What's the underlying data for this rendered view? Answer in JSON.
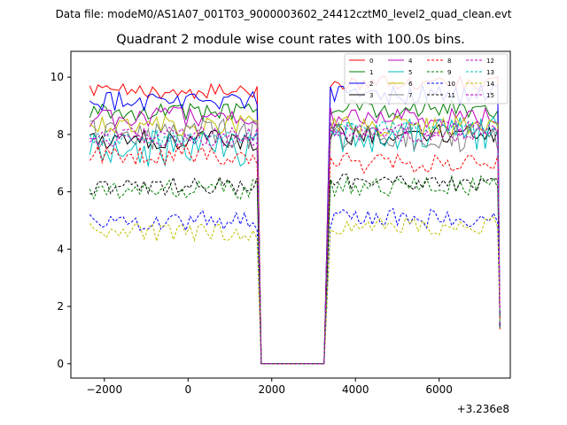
{
  "suptitle": "Data file: modeM0/AS1A07_001T03_9000003602_24412cztM0_level2_quad_clean.evt",
  "chart_data": {
    "type": "line",
    "title": "Quadrant 2 module wise count rates with 100.0s bins.",
    "xlabel": "",
    "ylabel": "",
    "x_offset_label": "+3.236e8",
    "xlim": [
      -2800,
      7700
    ],
    "ylim": [
      -0.5,
      10.9
    ],
    "xticks": [
      -2000,
      0,
      2000,
      4000,
      6000
    ],
    "yticks": [
      0,
      2,
      4,
      6,
      8,
      10
    ],
    "grid": false,
    "legend_position": "top-right",
    "gap": {
      "start": 1700,
      "end": 3250
    },
    "x_start": -2350,
    "x_end": 7450,
    "bin": 100,
    "series": [
      {
        "name": "0",
        "color": "#ff0000",
        "dash": "solid",
        "level_a": 9.5,
        "level_b": 9.8,
        "noise": 0.15
      },
      {
        "name": "1",
        "color": "#008000",
        "dash": "solid",
        "level_a": 8.8,
        "level_b": 8.9,
        "noise": 0.18
      },
      {
        "name": "2",
        "color": "#0000ff",
        "dash": "solid",
        "level_a": 9.2,
        "level_b": 9.4,
        "noise": 0.2
      },
      {
        "name": "3",
        "color": "#000000",
        "dash": "solid",
        "level_a": 7.8,
        "level_b": 8.0,
        "noise": 0.2
      },
      {
        "name": "4",
        "color": "#bf00bf",
        "dash": "solid",
        "level_a": 8.6,
        "level_b": 8.6,
        "noise": 0.2
      },
      {
        "name": "5",
        "color": "#00bfbf",
        "dash": "solid",
        "level_a": 7.5,
        "level_b": 8.0,
        "noise": 0.35
      },
      {
        "name": "6",
        "color": "#bfbf00",
        "dash": "solid",
        "level_a": 8.3,
        "level_b": 8.3,
        "noise": 0.2
      },
      {
        "name": "7",
        "color": "#808080",
        "dash": "solid",
        "level_a": 8.0,
        "level_b": 7.9,
        "noise": 0.3
      },
      {
        "name": "8",
        "color": "#ff0000",
        "dash": "dashed",
        "level_a": 7.3,
        "level_b": 7.0,
        "noise": 0.2
      },
      {
        "name": "9",
        "color": "#008000",
        "dash": "dashed",
        "level_a": 6.1,
        "level_b": 6.2,
        "noise": 0.2
      },
      {
        "name": "10",
        "color": "#0000ff",
        "dash": "dashed",
        "level_a": 5.0,
        "level_b": 5.1,
        "noise": 0.2
      },
      {
        "name": "11",
        "color": "#000000",
        "dash": "dashed",
        "level_a": 6.2,
        "level_b": 6.3,
        "noise": 0.18
      },
      {
        "name": "12",
        "color": "#bf00bf",
        "dash": "dashed",
        "level_a": 7.8,
        "level_b": 8.0,
        "noise": 0.15
      },
      {
        "name": "13",
        "color": "#00bfbf",
        "dash": "dashed",
        "level_a": 7.9,
        "level_b": 8.2,
        "noise": 0.15
      },
      {
        "name": "14",
        "color": "#bfbf00",
        "dash": "dashed",
        "level_a": 4.6,
        "level_b": 4.8,
        "noise": 0.18
      },
      {
        "name": "15",
        "color": "#bf00bf",
        "dash": "dashed",
        "level_a": 8.0,
        "level_b": 8.2,
        "noise": 0.15
      }
    ]
  }
}
